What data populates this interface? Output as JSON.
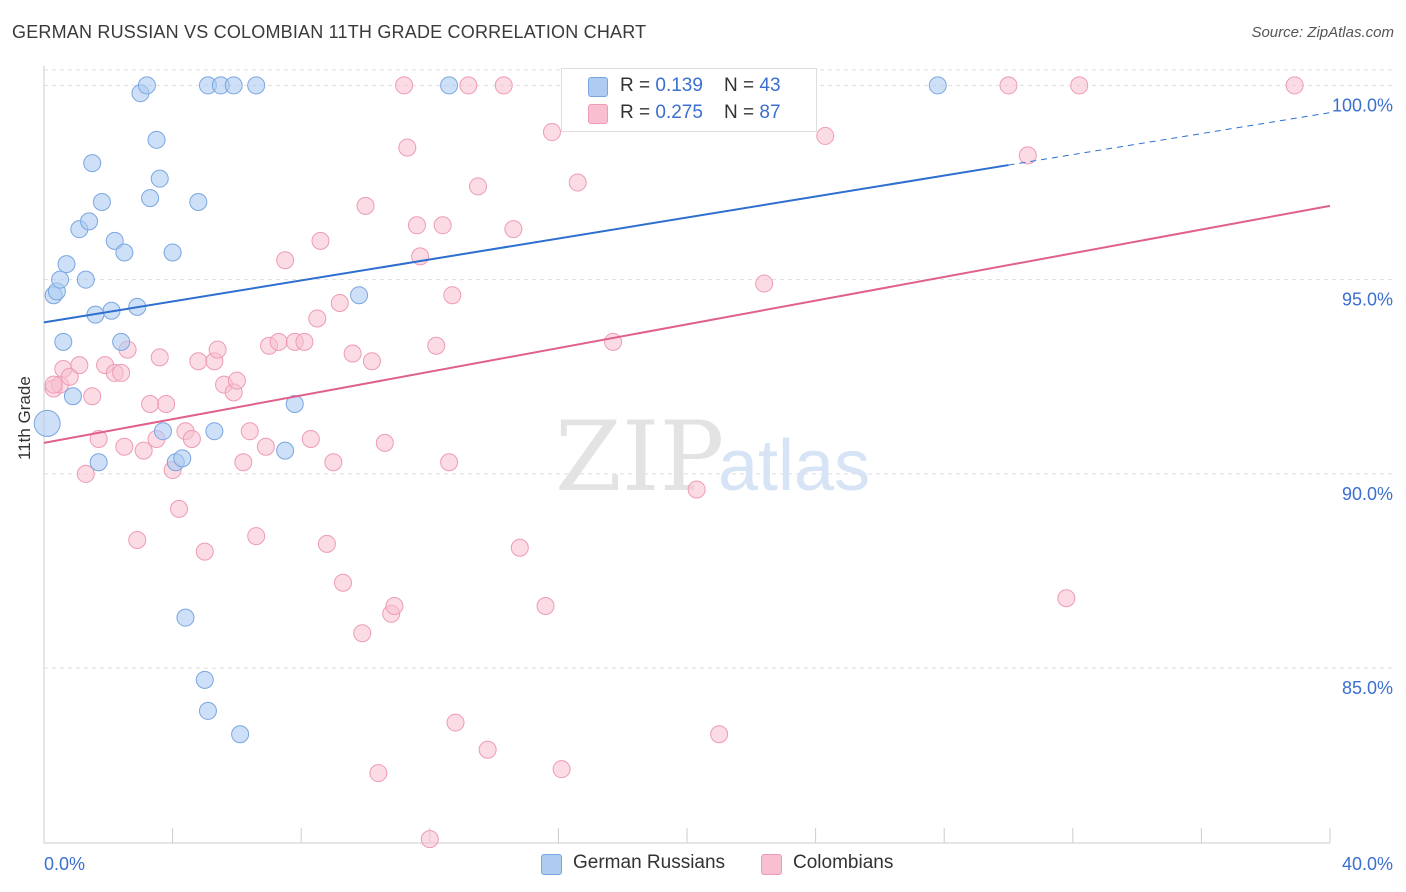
{
  "title": "GERMAN RUSSIAN VS COLOMBIAN 11TH GRADE CORRELATION CHART",
  "source": "Source: ZipAtlas.com",
  "watermark": {
    "zip": "ZIP",
    "atlas": "atlas"
  },
  "legend": {
    "rows": [
      {
        "r_label": "R = ",
        "r_value": "0.139",
        "n_label": "N = ",
        "n_value": "43"
      },
      {
        "r_label": "R = ",
        "r_value": "0.275",
        "n_label": "N = ",
        "n_value": "87"
      }
    ]
  },
  "bottom_legend": [
    "German Russians",
    "Colombians"
  ],
  "colors": {
    "blue_fill": "#aecbf2",
    "blue_stroke": "#7aa6e0",
    "blue_line": "#2d6fcf",
    "pink_fill": "#f7bfd0",
    "pink_stroke": "#ee9bb5",
    "pink_line": "#e0608c",
    "tick_label": "#3b6fd0",
    "grid": "#dddddd"
  },
  "chart_data": {
    "type": "scatter",
    "title": "GERMAN RUSSIAN VS COLOMBIAN 11TH GRADE CORRELATION CHART",
    "xlabel": "",
    "ylabel": "11th Grade",
    "xlim": [
      0,
      40
    ],
    "ylim": [
      80.5,
      100.5
    ],
    "x_tick_labels": [
      "0.0%",
      "40.0%"
    ],
    "y_ticks": [
      85,
      90,
      95,
      100
    ],
    "y_tick_labels": [
      "85.0%",
      "90.0%",
      "95.0%",
      "100.0%"
    ],
    "grid": "horizontal dashed",
    "series": [
      {
        "name": "German Russians",
        "R": 0.139,
        "N": 43,
        "trend": {
          "x0": 0,
          "y0": 93.9,
          "x1": 40,
          "y1": 99.3,
          "solid_until": 30
        },
        "points": [
          [
            0.1,
            91.3
          ],
          [
            0.3,
            94.6
          ],
          [
            0.4,
            94.7
          ],
          [
            0.5,
            95.0
          ],
          [
            0.6,
            93.4
          ],
          [
            0.7,
            95.4
          ],
          [
            0.9,
            92.0
          ],
          [
            1.1,
            96.3
          ],
          [
            1.3,
            95.0
          ],
          [
            1.4,
            96.5
          ],
          [
            1.5,
            98.0
          ],
          [
            1.6,
            94.1
          ],
          [
            1.7,
            90.3
          ],
          [
            1.8,
            97.0
          ],
          [
            2.1,
            94.2
          ],
          [
            2.2,
            96.0
          ],
          [
            2.4,
            93.4
          ],
          [
            2.5,
            95.7
          ],
          [
            2.9,
            94.3
          ],
          [
            3.0,
            99.8
          ],
          [
            3.2,
            100.0
          ],
          [
            3.3,
            97.1
          ],
          [
            3.5,
            98.6
          ],
          [
            3.6,
            97.6
          ],
          [
            3.7,
            91.1
          ],
          [
            4.0,
            95.7
          ],
          [
            4.1,
            90.3
          ],
          [
            4.3,
            90.4
          ],
          [
            4.4,
            86.3
          ],
          [
            4.8,
            97.0
          ],
          [
            5.0,
            84.7
          ],
          [
            5.1,
            100.0
          ],
          [
            5.3,
            91.1
          ],
          [
            5.5,
            100.0
          ],
          [
            5.1,
            83.9
          ],
          [
            5.9,
            100.0
          ],
          [
            6.1,
            83.3
          ],
          [
            6.6,
            100.0
          ],
          [
            7.5,
            90.6
          ],
          [
            7.8,
            91.8
          ],
          [
            9.8,
            94.6
          ],
          [
            12.6,
            100.0
          ],
          [
            27.8,
            100.0
          ]
        ]
      },
      {
        "name": "Colombians",
        "R": 0.275,
        "N": 87,
        "trend": {
          "x0": 0,
          "y0": 90.8,
          "x1": 40,
          "y1": 96.9
        },
        "points": [
          [
            0.3,
            92.2
          ],
          [
            0.5,
            92.3
          ],
          [
            0.6,
            92.7
          ],
          [
            0.8,
            92.5
          ],
          [
            1.1,
            92.8
          ],
          [
            1.3,
            90.0
          ],
          [
            1.5,
            92.0
          ],
          [
            1.7,
            90.9
          ],
          [
            1.9,
            92.8
          ],
          [
            2.2,
            92.6
          ],
          [
            2.4,
            92.6
          ],
          [
            2.5,
            90.7
          ],
          [
            2.6,
            93.2
          ],
          [
            2.9,
            88.3
          ],
          [
            3.1,
            90.6
          ],
          [
            3.3,
            91.8
          ],
          [
            3.5,
            90.9
          ],
          [
            3.6,
            93.0
          ],
          [
            3.8,
            91.8
          ],
          [
            4.0,
            90.1
          ],
          [
            4.2,
            89.1
          ],
          [
            4.4,
            91.1
          ],
          [
            4.6,
            90.9
          ],
          [
            4.8,
            92.9
          ],
          [
            5.0,
            88.0
          ],
          [
            5.3,
            92.9
          ],
          [
            5.4,
            93.2
          ],
          [
            5.6,
            92.3
          ],
          [
            5.9,
            92.1
          ],
          [
            6.0,
            92.4
          ],
          [
            6.2,
            90.3
          ],
          [
            6.4,
            91.1
          ],
          [
            6.6,
            88.4
          ],
          [
            6.9,
            90.7
          ],
          [
            7.0,
            93.3
          ],
          [
            7.3,
            93.4
          ],
          [
            7.5,
            95.5
          ],
          [
            7.8,
            93.4
          ],
          [
            8.1,
            93.4
          ],
          [
            8.3,
            90.9
          ],
          [
            8.5,
            94.0
          ],
          [
            8.6,
            96.0
          ],
          [
            8.8,
            88.2
          ],
          [
            9.0,
            90.3
          ],
          [
            9.2,
            94.4
          ],
          [
            9.3,
            87.2
          ],
          [
            9.6,
            93.1
          ],
          [
            9.9,
            85.9
          ],
          [
            10.0,
            96.9
          ],
          [
            10.2,
            92.9
          ],
          [
            10.4,
            82.3
          ],
          [
            10.6,
            90.8
          ],
          [
            10.8,
            86.4
          ],
          [
            10.9,
            86.6
          ],
          [
            11.2,
            100.0
          ],
          [
            11.3,
            98.4
          ],
          [
            11.6,
            96.4
          ],
          [
            11.7,
            95.6
          ],
          [
            12.0,
            80.6
          ],
          [
            12.4,
            96.4
          ],
          [
            12.6,
            90.3
          ],
          [
            12.7,
            94.6
          ],
          [
            12.8,
            83.6
          ],
          [
            13.2,
            100.0
          ],
          [
            13.5,
            97.4
          ],
          [
            13.8,
            82.9
          ],
          [
            14.3,
            100.0
          ],
          [
            14.6,
            96.3
          ],
          [
            14.8,
            88.1
          ],
          [
            15.6,
            86.6
          ],
          [
            15.8,
            98.8
          ],
          [
            16.1,
            82.4
          ],
          [
            16.6,
            97.5
          ],
          [
            17.7,
            93.4
          ],
          [
            18.5,
            100.0
          ],
          [
            20.3,
            89.6
          ],
          [
            21.0,
            83.3
          ],
          [
            21.9,
            100.0
          ],
          [
            22.4,
            94.9
          ],
          [
            24.3,
            98.7
          ],
          [
            12.2,
            93.3
          ],
          [
            30.0,
            100.0
          ],
          [
            30.6,
            98.2
          ],
          [
            31.8,
            86.8
          ],
          [
            32.2,
            100.0
          ],
          [
            38.9,
            100.0
          ],
          [
            0.3,
            92.3
          ]
        ]
      }
    ]
  }
}
